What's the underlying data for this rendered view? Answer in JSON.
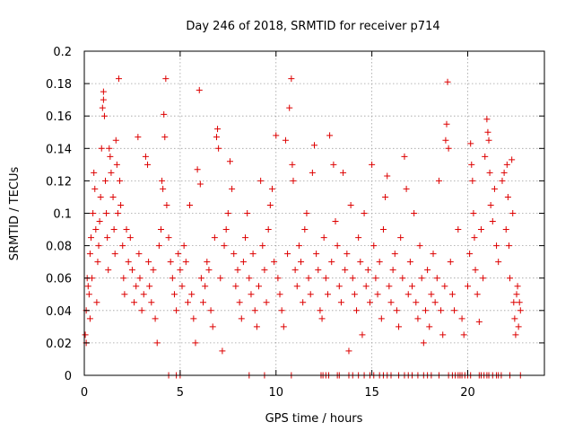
{
  "chart_data": {
    "type": "scatter",
    "title": "Day 246 of 2018, SRMTID for receiver p714",
    "xlabel": "GPS time / hours",
    "ylabel": "SRMTID / TECUs",
    "xlim": [
      0,
      24
    ],
    "ylim": [
      0,
      0.2
    ],
    "xticks": [
      0,
      5,
      10,
      15,
      20
    ],
    "xtick_labels": [
      "0",
      "5",
      "10",
      "15",
      "20"
    ],
    "yticks": [
      0,
      0.02,
      0.04,
      0.06,
      0.08,
      0.1,
      0.12,
      0.14,
      0.16,
      0.18,
      0.2
    ],
    "ytick_labels": [
      "0",
      "0.02",
      "0.04",
      "0.06",
      "0.08",
      "0.1",
      "0.12",
      "0.14",
      "0.16",
      "0.18",
      "0.2"
    ],
    "grid": true,
    "marker": "+",
    "series_color": "#dd0000",
    "series": [
      {
        "name": "SRMTID",
        "points": [
          [
            0.05,
            0.025
          ],
          [
            0.1,
            0.02
          ],
          [
            0.1,
            0.04
          ],
          [
            0.15,
            0.06
          ],
          [
            0.2,
            0.055
          ],
          [
            0.25,
            0.05
          ],
          [
            0.3,
            0.035
          ],
          [
            0.3,
            0.075
          ],
          [
            0.35,
            0.085
          ],
          [
            0.4,
            0.06
          ],
          [
            0.45,
            0.1
          ],
          [
            0.5,
            0.125
          ],
          [
            0.55,
            0.115
          ],
          [
            0.6,
            0.09
          ],
          [
            0.65,
            0.045
          ],
          [
            0.7,
            0.07
          ],
          [
            0.75,
            0.08
          ],
          [
            0.8,
            0.095
          ],
          [
            0.85,
            0.11
          ],
          [
            0.9,
            0.14
          ],
          [
            0.95,
            0.165
          ],
          [
            1.0,
            0.17
          ],
          [
            1.0,
            0.175
          ],
          [
            1.05,
            0.16
          ],
          [
            1.1,
            0.12
          ],
          [
            1.15,
            0.1
          ],
          [
            1.2,
            0.085
          ],
          [
            1.25,
            0.065
          ],
          [
            1.3,
            0.14
          ],
          [
            1.35,
            0.135
          ],
          [
            1.4,
            0.125
          ],
          [
            1.5,
            0.11
          ],
          [
            1.55,
            0.09
          ],
          [
            1.6,
            0.075
          ],
          [
            1.65,
            0.145
          ],
          [
            1.7,
            0.13
          ],
          [
            1.75,
            0.1
          ],
          [
            1.8,
            0.183
          ],
          [
            1.85,
            0.12
          ],
          [
            1.9,
            0.105
          ],
          [
            2.0,
            0.08
          ],
          [
            2.05,
            0.06
          ],
          [
            2.1,
            0.05
          ],
          [
            2.2,
            0.09
          ],
          [
            2.3,
            0.07
          ],
          [
            2.4,
            0.085
          ],
          [
            2.5,
            0.065
          ],
          [
            2.6,
            0.045
          ],
          [
            2.7,
            0.055
          ],
          [
            2.8,
            0.147
          ],
          [
            2.85,
            0.075
          ],
          [
            2.9,
            0.06
          ],
          [
            3.0,
            0.04
          ],
          [
            3.1,
            0.05
          ],
          [
            3.2,
            0.135
          ],
          [
            3.3,
            0.13
          ],
          [
            3.35,
            0.07
          ],
          [
            3.4,
            0.055
          ],
          [
            3.5,
            0.045
          ],
          [
            3.6,
            0.065
          ],
          [
            3.7,
            0.035
          ],
          [
            3.8,
            0.02
          ],
          [
            3.9,
            0.08
          ],
          [
            4.0,
            0.09
          ],
          [
            4.05,
            0.12
          ],
          [
            4.1,
            0.115
          ],
          [
            4.15,
            0.161
          ],
          [
            4.2,
            0.147
          ],
          [
            4.25,
            0.183
          ],
          [
            4.3,
            0.105
          ],
          [
            4.4,
            0.085
          ],
          [
            4.5,
            0.07
          ],
          [
            4.6,
            0.06
          ],
          [
            4.7,
            0.05
          ],
          [
            4.8,
            0.04
          ],
          [
            4.9,
            0.075
          ],
          [
            5.0,
            0.065
          ],
          [
            5.1,
            0.055
          ],
          [
            5.2,
            0.08
          ],
          [
            5.3,
            0.07
          ],
          [
            5.4,
            0.045
          ],
          [
            5.5,
            0.105
          ],
          [
            5.6,
            0.05
          ],
          [
            5.7,
            0.035
          ],
          [
            5.8,
            0.02
          ],
          [
            5.9,
            0.127
          ],
          [
            6.0,
            0.176
          ],
          [
            6.05,
            0.118
          ],
          [
            6.1,
            0.06
          ],
          [
            6.2,
            0.045
          ],
          [
            6.3,
            0.055
          ],
          [
            6.4,
            0.07
          ],
          [
            6.5,
            0.065
          ],
          [
            6.6,
            0.04
          ],
          [
            6.7,
            0.03
          ],
          [
            6.8,
            0.085
          ],
          [
            6.9,
            0.147
          ],
          [
            6.95,
            0.152
          ],
          [
            7.0,
            0.14
          ],
          [
            7.1,
            0.06
          ],
          [
            7.2,
            0.015
          ],
          [
            7.3,
            0.08
          ],
          [
            7.4,
            0.09
          ],
          [
            7.5,
            0.1
          ],
          [
            7.6,
            0.132
          ],
          [
            7.7,
            0.115
          ],
          [
            7.8,
            0.075
          ],
          [
            7.9,
            0.055
          ],
          [
            8.0,
            0.065
          ],
          [
            8.1,
            0.045
          ],
          [
            8.2,
            0.035
          ],
          [
            8.3,
            0.07
          ],
          [
            8.4,
            0.085
          ],
          [
            8.5,
            0.1
          ],
          [
            8.6,
            0.06
          ],
          [
            8.7,
            0.05
          ],
          [
            8.8,
            0.075
          ],
          [
            8.9,
            0.04
          ],
          [
            9.0,
            0.03
          ],
          [
            9.1,
            0.055
          ],
          [
            9.2,
            0.12
          ],
          [
            9.3,
            0.08
          ],
          [
            9.4,
            0.065
          ],
          [
            9.5,
            0.045
          ],
          [
            9.6,
            0.09
          ],
          [
            9.7,
            0.105
          ],
          [
            9.8,
            0.115
          ],
          [
            9.9,
            0.07
          ],
          [
            10.0,
            0.148
          ],
          [
            10.1,
            0.06
          ],
          [
            10.2,
            0.05
          ],
          [
            10.3,
            0.04
          ],
          [
            10.4,
            0.03
          ],
          [
            10.5,
            0.145
          ],
          [
            10.6,
            0.075
          ],
          [
            10.7,
            0.165
          ],
          [
            10.8,
            0.183
          ],
          [
            10.85,
            0.13
          ],
          [
            10.9,
            0.12
          ],
          [
            11.0,
            0.065
          ],
          [
            11.1,
            0.055
          ],
          [
            11.2,
            0.08
          ],
          [
            11.3,
            0.07
          ],
          [
            11.4,
            0.045
          ],
          [
            11.5,
            0.09
          ],
          [
            11.6,
            0.1
          ],
          [
            11.7,
            0.06
          ],
          [
            11.8,
            0.05
          ],
          [
            11.9,
            0.125
          ],
          [
            12.0,
            0.142
          ],
          [
            12.1,
            0.075
          ],
          [
            12.2,
            0.065
          ],
          [
            12.3,
            0.04
          ],
          [
            12.4,
            0.035
          ],
          [
            12.5,
            0.085
          ],
          [
            12.6,
            0.06
          ],
          [
            12.7,
            0.05
          ],
          [
            12.8,
            0.148
          ],
          [
            12.9,
            0.07
          ],
          [
            13.0,
            0.13
          ],
          [
            13.1,
            0.095
          ],
          [
            13.2,
            0.08
          ],
          [
            13.3,
            0.055
          ],
          [
            13.4,
            0.045
          ],
          [
            13.5,
            0.125
          ],
          [
            13.6,
            0.065
          ],
          [
            13.7,
            0.075
          ],
          [
            13.8,
            0.015
          ],
          [
            13.9,
            0.105
          ],
          [
            14.0,
            0.06
          ],
          [
            14.1,
            0.05
          ],
          [
            14.2,
            0.04
          ],
          [
            14.3,
            0.085
          ],
          [
            14.4,
            0.07
          ],
          [
            14.5,
            0.025
          ],
          [
            14.6,
            0.1
          ],
          [
            14.7,
            0.055
          ],
          [
            14.8,
            0.065
          ],
          [
            14.9,
            0.045
          ],
          [
            15.0,
            0.13
          ],
          [
            15.1,
            0.08
          ],
          [
            15.2,
            0.06
          ],
          [
            15.3,
            0.05
          ],
          [
            15.4,
            0.07
          ],
          [
            15.5,
            0.035
          ],
          [
            15.6,
            0.09
          ],
          [
            15.7,
            0.11
          ],
          [
            15.8,
            0.123
          ],
          [
            15.9,
            0.055
          ],
          [
            16.0,
            0.045
          ],
          [
            16.1,
            0.065
          ],
          [
            16.2,
            0.075
          ],
          [
            16.3,
            0.04
          ],
          [
            16.4,
            0.03
          ],
          [
            16.5,
            0.085
          ],
          [
            16.6,
            0.06
          ],
          [
            16.7,
            0.135
          ],
          [
            16.8,
            0.115
          ],
          [
            16.9,
            0.05
          ],
          [
            17.0,
            0.07
          ],
          [
            17.1,
            0.055
          ],
          [
            17.2,
            0.1
          ],
          [
            17.3,
            0.045
          ],
          [
            17.4,
            0.035
          ],
          [
            17.5,
            0.08
          ],
          [
            17.6,
            0.06
          ],
          [
            17.7,
            0.02
          ],
          [
            17.8,
            0.04
          ],
          [
            17.9,
            0.065
          ],
          [
            18.0,
            0.03
          ],
          [
            18.1,
            0.05
          ],
          [
            18.2,
            0.075
          ],
          [
            18.3,
            0.045
          ],
          [
            18.4,
            0.06
          ],
          [
            18.5,
            0.12
          ],
          [
            18.6,
            0.04
          ],
          [
            18.7,
            0.025
          ],
          [
            18.8,
            0.055
          ],
          [
            18.85,
            0.145
          ],
          [
            18.9,
            0.155
          ],
          [
            18.95,
            0.181
          ],
          [
            19.0,
            0.14
          ],
          [
            19.1,
            0.07
          ],
          [
            19.2,
            0.05
          ],
          [
            19.3,
            0.04
          ],
          [
            19.5,
            0.09
          ],
          [
            19.7,
            0.035
          ],
          [
            19.8,
            0.025
          ],
          [
            20.0,
            0.055
          ],
          [
            20.1,
            0.075
          ],
          [
            20.15,
            0.143
          ],
          [
            20.2,
            0.13
          ],
          [
            20.25,
            0.12
          ],
          [
            20.3,
            0.1
          ],
          [
            20.35,
            0.085
          ],
          [
            20.4,
            0.065
          ],
          [
            20.5,
            0.05
          ],
          [
            20.6,
            0.033
          ],
          [
            20.7,
            0.09
          ],
          [
            20.8,
            0.06
          ],
          [
            20.9,
            0.135
          ],
          [
            21.0,
            0.158
          ],
          [
            21.05,
            0.15
          ],
          [
            21.1,
            0.145
          ],
          [
            21.15,
            0.125
          ],
          [
            21.2,
            0.105
          ],
          [
            21.3,
            0.095
          ],
          [
            21.4,
            0.115
          ],
          [
            21.5,
            0.08
          ],
          [
            21.6,
            0.07
          ],
          [
            21.8,
            0.12
          ],
          [
            21.9,
            0.125
          ],
          [
            22.0,
            0.09
          ],
          [
            22.05,
            0.13
          ],
          [
            22.1,
            0.11
          ],
          [
            22.15,
            0.08
          ],
          [
            22.2,
            0.06
          ],
          [
            22.3,
            0.133
          ],
          [
            22.35,
            0.1
          ],
          [
            22.4,
            0.045
          ],
          [
            22.45,
            0.035
          ],
          [
            22.5,
            0.025
          ],
          [
            22.55,
            0.05
          ],
          [
            22.6,
            0.055
          ],
          [
            22.65,
            0.03
          ],
          [
            22.7,
            0.045
          ],
          [
            22.75,
            0.04
          ]
        ]
      }
    ],
    "zero_points_x": [
      4.4,
      4.8,
      5.0,
      8.6,
      9.4,
      10.8,
      12.35,
      12.45,
      12.6,
      12.75,
      13.2,
      13.3,
      13.8,
      14.0,
      14.3,
      14.6,
      14.9,
      15.1,
      15.4,
      15.6,
      15.8,
      16.0,
      16.4,
      16.7,
      16.9,
      17.1,
      17.4,
      17.7,
      17.9,
      18.1,
      18.5,
      19.0,
      19.2,
      19.35,
      19.5,
      19.6,
      19.7,
      19.85,
      20.0,
      20.15,
      20.6,
      20.7,
      20.85,
      21.0,
      21.1,
      21.3,
      21.5,
      21.6,
      21.75,
      22.2,
      22.75
    ]
  }
}
